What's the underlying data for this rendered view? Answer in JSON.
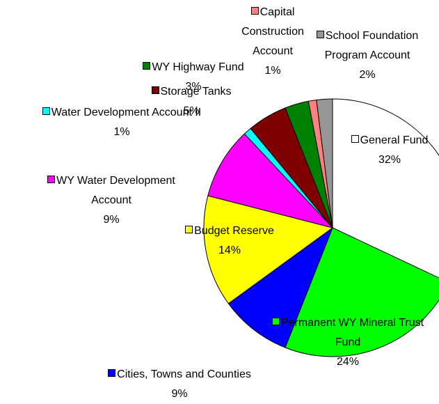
{
  "chart_data": {
    "type": "pie",
    "categories": [
      "General Fund",
      "Permanent WY Mineral Trust Fund",
      "Cities, Towns and Counties",
      "Budget Reserve",
      "WY Water Development Account",
      "Water Development Account II",
      "Storage Tanks",
      "WY Highway Fund",
      "Capital Construction Account",
      "School Foundation Program Account"
    ],
    "values": [
      32,
      24,
      9,
      14,
      9,
      1,
      5,
      3,
      1,
      2
    ],
    "value_labels": [
      "32%",
      "24%",
      "9%",
      "14%",
      "9%",
      "1%",
      "5%",
      "3%",
      "1%",
      "2%"
    ],
    "colors": [
      "#ffffff",
      "#00ff00",
      "#0000ff",
      "#ffff00",
      "#ff00ff",
      "#00ffff",
      "#800000",
      "#008000",
      "#ff8080",
      "#969696"
    ]
  }
}
